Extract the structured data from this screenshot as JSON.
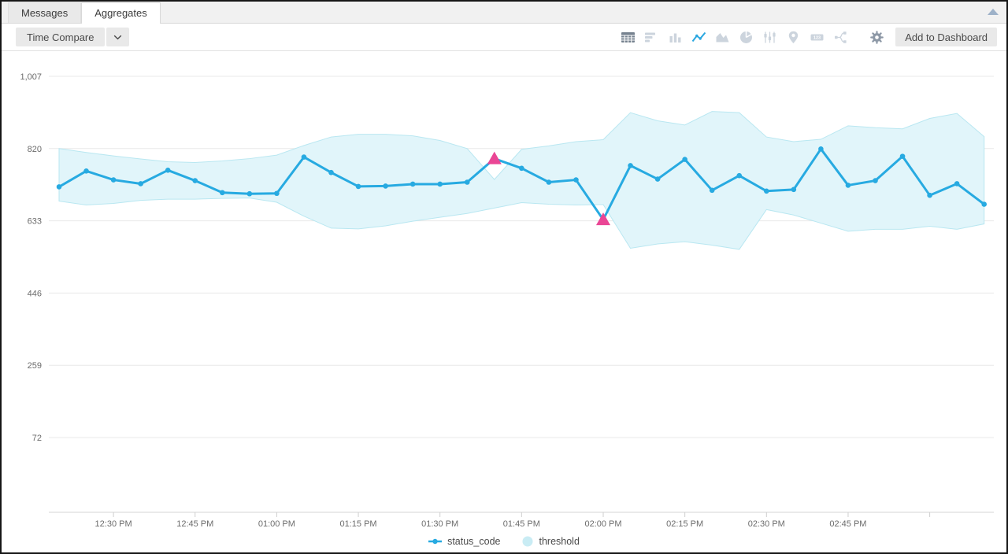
{
  "window": {
    "name": "search-results-panel"
  },
  "tabs": [
    {
      "label": "Messages",
      "active": false
    },
    {
      "label": "Aggregates",
      "active": true
    }
  ],
  "toolbar": {
    "time_compare_label": "Time Compare",
    "add_to_dashboard_label": "Add to Dashboard",
    "icons": [
      {
        "name": "table-view"
      },
      {
        "name": "bar-chart-view"
      },
      {
        "name": "column-chart-view"
      },
      {
        "name": "line-chart-view",
        "selected": true
      },
      {
        "name": "area-chart-view"
      },
      {
        "name": "pie-chart-view"
      },
      {
        "name": "box-plot-view"
      },
      {
        "name": "map-view"
      },
      {
        "name": "single-value-view"
      },
      {
        "name": "flow-view"
      },
      {
        "name": "settings-gear"
      }
    ]
  },
  "colors": {
    "line": "#27aae1",
    "band_fill": "#e1f5fa",
    "band_edge": "#b9e7f1",
    "anomaly": "#ea4695",
    "selected_icon": "#2aa7e0",
    "idle_icon": "#ccd4dd",
    "grid": "#e8e8e8"
  },
  "chart_data": {
    "type": "line",
    "title": "",
    "xlabel": "",
    "ylabel": "",
    "grid": "horizontal",
    "legend_position": "bottom-center",
    "ylim": [
      72,
      1007
    ],
    "y_ticks": [
      1007,
      820,
      633,
      446,
      259,
      72
    ],
    "y_tick_labels": [
      "1,007",
      "820",
      "633",
      "446",
      "259",
      "72"
    ],
    "x": [
      "12:20 PM",
      "12:25 PM",
      "12:30 PM",
      "12:35 PM",
      "12:40 PM",
      "12:45 PM",
      "12:50 PM",
      "12:55 PM",
      "01:00 PM",
      "01:05 PM",
      "01:10 PM",
      "01:15 PM",
      "01:20 PM",
      "01:25 PM",
      "01:30 PM",
      "01:35 PM",
      "01:40 PM",
      "01:45 PM",
      "01:50 PM",
      "01:55 PM",
      "02:00 PM",
      "02:05 PM",
      "02:10 PM",
      "02:15 PM",
      "02:20 PM",
      "02:25 PM",
      "02:30 PM",
      "02:35 PM",
      "02:40 PM",
      "02:45 PM",
      "02:50 PM",
      "02:55 PM",
      "03:00 PM",
      "03:05 PM",
      "03:10 PM"
    ],
    "x_ticks": [
      {
        "index": 2,
        "label": "12:30 PM"
      },
      {
        "index": 5,
        "label": "12:45 PM"
      },
      {
        "index": 8,
        "label": "01:00 PM"
      },
      {
        "index": 11,
        "label": "01:15 PM"
      },
      {
        "index": 14,
        "label": "01:30 PM"
      },
      {
        "index": 17,
        "label": "01:45 PM"
      },
      {
        "index": 20,
        "label": "02:00 PM"
      },
      {
        "index": 23,
        "label": "02:15 PM"
      },
      {
        "index": 26,
        "label": "02:30 PM"
      },
      {
        "index": 29,
        "label": "02:45 PM"
      },
      {
        "index": 32,
        "label": ""
      }
    ],
    "series": [
      {
        "name": "status_code",
        "type": "line",
        "color": "#27aae1",
        "values": [
          721,
          762,
          739,
          729,
          764,
          737,
          706,
          703,
          704,
          798,
          758,
          722,
          723,
          728,
          728,
          733,
          794,
          769,
          733,
          739,
          636,
          776,
          741,
          792,
          712,
          750,
          710,
          714,
          819,
          725,
          737,
          800,
          699,
          729,
          676
        ]
      },
      {
        "name": "threshold",
        "type": "band",
        "fill": "#e1f5fa",
        "edge": "#b9e7f1",
        "upper": [
          820,
          810,
          801,
          793,
          786,
          784,
          788,
          794,
          803,
          828,
          850,
          857,
          857,
          853,
          841,
          820,
          740,
          818,
          827,
          838,
          843,
          913,
          892,
          881,
          916,
          913,
          850,
          838,
          844,
          879,
          874,
          871,
          898,
          911,
          851
        ],
        "lower": [
          684,
          674,
          678,
          686,
          689,
          689,
          691,
          692,
          681,
          645,
          614,
          612,
          620,
          632,
          642,
          652,
          666,
          680,
          676,
          674,
          675,
          562,
          573,
          579,
          570,
          559,
          662,
          648,
          627,
          606,
          611,
          611,
          619,
          611,
          625
        ]
      }
    ],
    "anomalies": [
      {
        "index": 16,
        "time": "01:40 PM",
        "value": 794
      },
      {
        "index": 20,
        "time": "02:00 PM",
        "value": 636
      }
    ],
    "anomaly_color": "#ea4695",
    "legend": [
      {
        "label": "status_code",
        "marker": "line-dot",
        "color": "#27aae1"
      },
      {
        "label": "threshold",
        "marker": "circle",
        "color": "#c9ecf4"
      }
    ]
  }
}
